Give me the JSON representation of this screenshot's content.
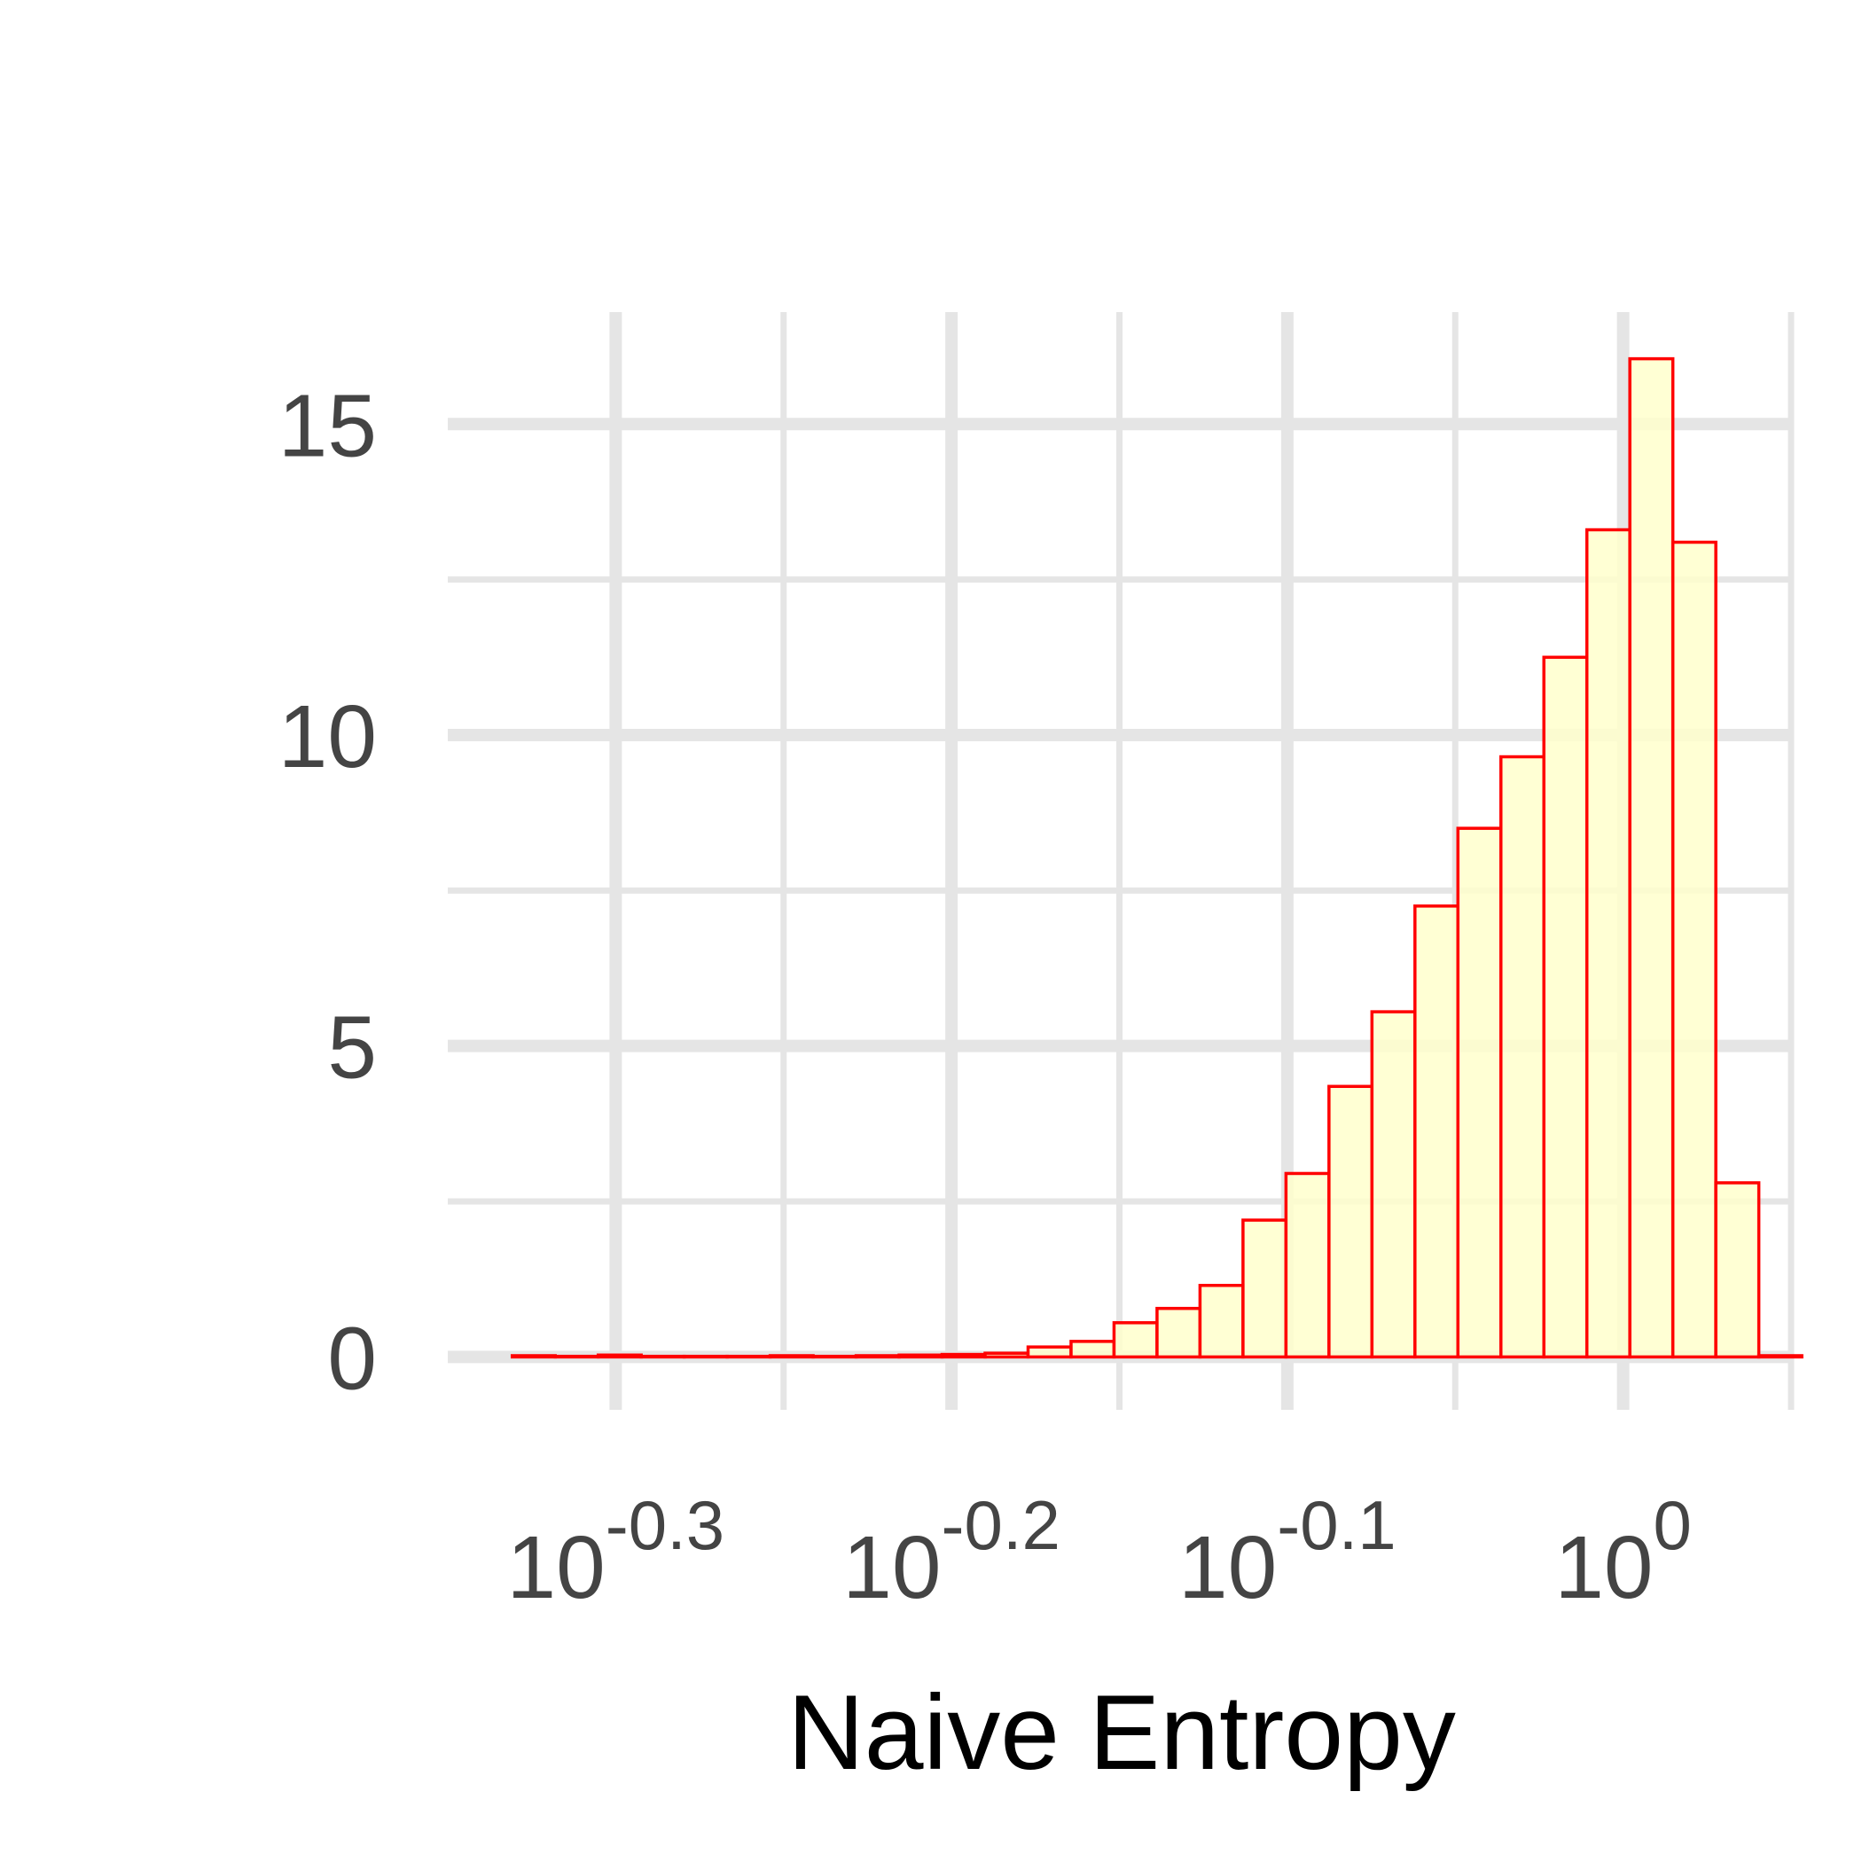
{
  "chart_data": {
    "type": "bar",
    "subtype": "histogram",
    "title": "",
    "xlabel": "Naive Entropy",
    "ylabel": "",
    "x_scale": "log10",
    "x_tick_labels": [
      {
        "value": -0.3,
        "base": "10",
        "exp": "-0.3"
      },
      {
        "value": -0.2,
        "base": "10",
        "exp": "-0.2"
      },
      {
        "value": -0.1,
        "base": "10",
        "exp": "-0.1"
      },
      {
        "value": 0.0,
        "base": "10",
        "exp": "0"
      }
    ],
    "y_ticks": [
      0,
      5,
      10,
      15
    ],
    "y_tick_labels": [
      "0",
      "5",
      "10",
      "15"
    ],
    "xlim_log10": [
      -0.35,
      0.05
    ],
    "ylim": [
      -0.85,
      16.8
    ],
    "grid": true,
    "bin_width_log10": 0.0128,
    "bins_log10_start": [
      -0.3308,
      -0.318,
      -0.3052,
      -0.2924,
      -0.2796,
      -0.2668,
      -0.254,
      -0.2412,
      -0.2284,
      -0.2156,
      -0.2028,
      -0.19,
      -0.1772,
      -0.1644,
      -0.1516,
      -0.1388,
      -0.126,
      -0.1132,
      -0.1004,
      -0.0876,
      -0.0748,
      -0.062,
      -0.0492,
      -0.0364,
      -0.0236,
      -0.0108,
      0.002,
      0.0148,
      0.0276,
      0.0404
    ],
    "values": [
      0.02,
      0.01,
      0.03,
      0.01,
      0.01,
      0.01,
      0.02,
      0.01,
      0.02,
      0.03,
      0.04,
      0.06,
      0.16,
      0.25,
      0.55,
      0.78,
      1.15,
      2.2,
      2.95,
      4.35,
      5.55,
      7.25,
      8.5,
      9.65,
      11.25,
      13.3,
      16.05,
      13.1,
      2.8,
      0.02
    ],
    "bar_fill": "#ffffcc",
    "bar_stroke": "#ff0000",
    "grid_color": "#e5e5e5",
    "background": "#ffffff"
  }
}
